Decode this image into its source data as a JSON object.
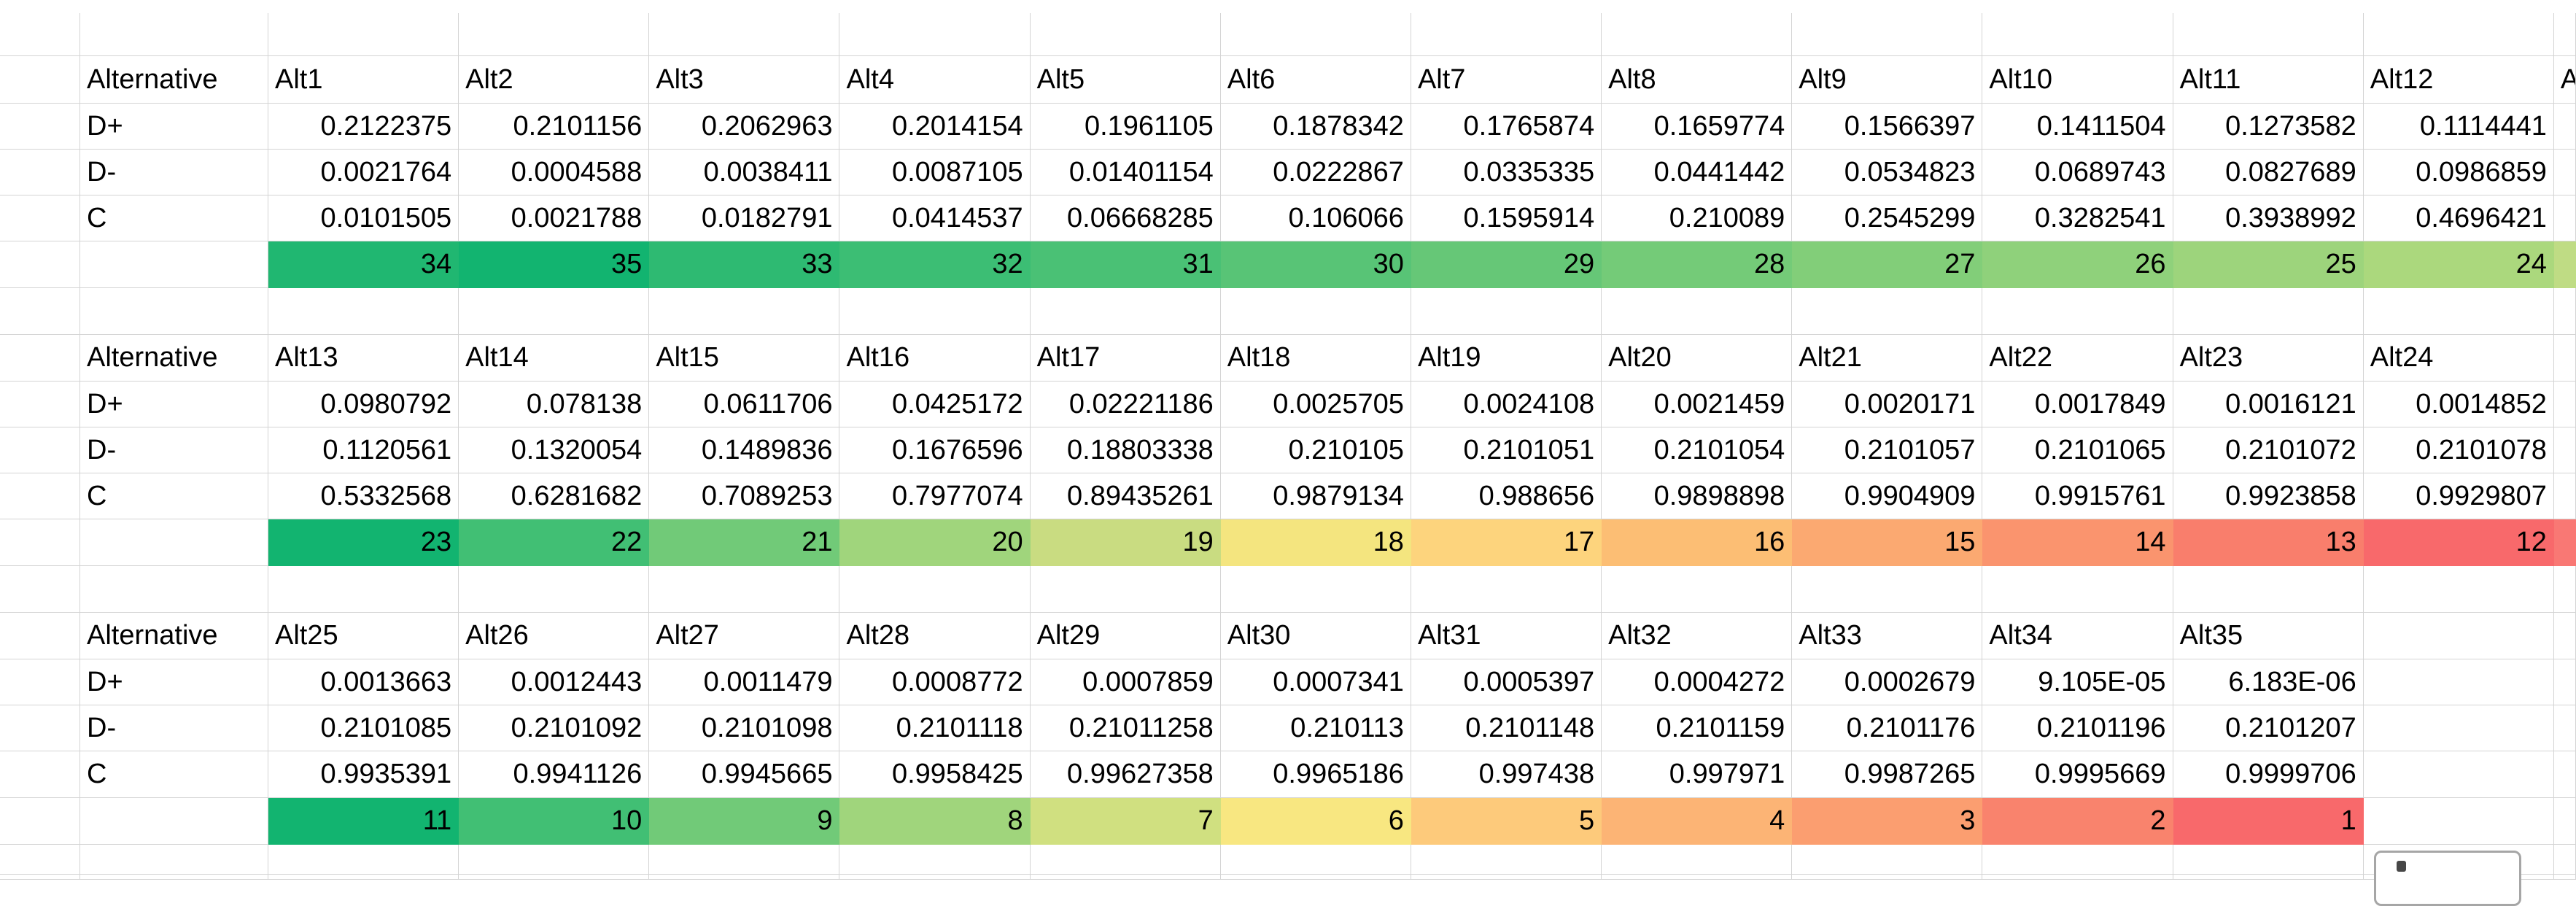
{
  "sheet": {
    "grid_color": "#d4d4d4",
    "header_label": "Alternative",
    "row_labels": [
      "D+",
      "D-",
      "C"
    ],
    "bands": [
      {
        "columns": [
          "Alt1",
          "Alt2",
          "Alt3",
          "Alt4",
          "Alt5",
          "Alt6",
          "Alt7",
          "Alt8",
          "Alt9",
          "Alt10",
          "Alt11",
          "Alt12"
        ],
        "sliver_header": "A",
        "rows": [
          [
            "0.2122375",
            "0.2101156",
            "0.2062963",
            "0.2014154",
            "0.1961105",
            "0.1878342",
            "0.1765874",
            "0.1659774",
            "0.1566397",
            "0.1411504",
            "0.1273582",
            "0.1114441"
          ],
          [
            "0.0021764",
            "0.0004588",
            "0.0038411",
            "0.0087105",
            "0.01401154",
            "0.0222867",
            "0.0335335",
            "0.0441442",
            "0.0534823",
            "0.0689743",
            "0.0827689",
            "0.0986859"
          ],
          [
            "0.0101505",
            "0.0021788",
            "0.0182791",
            "0.0414537",
            "0.06668285",
            "0.106066",
            "0.1595914",
            "0.210089",
            "0.2545299",
            "0.3282541",
            "0.3938992",
            "0.4696421"
          ]
        ],
        "ranks": [
          "34",
          "35",
          "33",
          "32",
          "31",
          "30",
          "29",
          "28",
          "27",
          "26",
          "25",
          "24"
        ],
        "rank_colors": [
          "#20B771",
          "#12B470",
          "#2EBA72",
          "#3CBE74",
          "#4AC175",
          "#58C476",
          "#66C777",
          "#74CB78",
          "#82CE79",
          "#8FD17B",
          "#9DD47C",
          "#ABD87D"
        ],
        "sliver_rank_color": "#BFDC84"
      },
      {
        "columns": [
          "Alt13",
          "Alt14",
          "Alt15",
          "Alt16",
          "Alt17",
          "Alt18",
          "Alt19",
          "Alt20",
          "Alt21",
          "Alt22",
          "Alt23",
          "Alt24"
        ],
        "sliver_header": "",
        "rows": [
          [
            "0.0980792",
            "0.078138",
            "0.0611706",
            "0.0425172",
            "0.02221186",
            "0.0025705",
            "0.0024108",
            "0.0021459",
            "0.0020171",
            "0.0017849",
            "0.0016121",
            "0.0014852"
          ],
          [
            "0.1120561",
            "0.1320054",
            "0.1489836",
            "0.1676596",
            "0.18803338",
            "0.210105",
            "0.2101051",
            "0.2101054",
            "0.2101057",
            "0.2101065",
            "0.2101072",
            "0.2101078"
          ],
          [
            "0.5332568",
            "0.6281682",
            "0.7089253",
            "0.7977074",
            "0.89435261",
            "0.9879134",
            "0.988656",
            "0.9898898",
            "0.9904909",
            "0.9915761",
            "0.9923858",
            "0.9929807"
          ]
        ],
        "ranks": [
          "23",
          "22",
          "21",
          "20",
          "19",
          "18",
          "17",
          "16",
          "15",
          "14",
          "13",
          "12"
        ],
        "rank_colors": [
          "#12B470",
          "#41BF74",
          "#71CA78",
          "#A0D57C",
          "#C9DC81",
          "#F4E57F",
          "#FDD47D",
          "#FCBE74",
          "#FBA971",
          "#FA946E",
          "#F97E6C",
          "#F8696B"
        ],
        "sliver_rank_color": "#F97874"
      },
      {
        "columns": [
          "Alt25",
          "Alt26",
          "Alt27",
          "Alt28",
          "Alt29",
          "Alt30",
          "Alt31",
          "Alt32",
          "Alt33",
          "Alt34",
          "Alt35",
          ""
        ],
        "sliver_header": "",
        "rows": [
          [
            "0.0013663",
            "0.0012443",
            "0.0011479",
            "0.0008772",
            "0.0007859",
            "0.0007341",
            "0.0005397",
            "0.0004272",
            "0.0002679",
            "9.105E-05",
            "6.183E-06",
            ""
          ],
          [
            "0.2101085",
            "0.2101092",
            "0.2101098",
            "0.2101118",
            "0.21011258",
            "0.210113",
            "0.2101148",
            "0.2101159",
            "0.2101176",
            "0.2101196",
            "0.2101207",
            ""
          ],
          [
            "0.9935391",
            "0.9941126",
            "0.9945665",
            "0.9958425",
            "0.99627358",
            "0.9965186",
            "0.997438",
            "0.997971",
            "0.9987265",
            "0.9995669",
            "0.9999706",
            ""
          ]
        ],
        "ranks": [
          "11",
          "10",
          "9",
          "8",
          "7",
          "6",
          "5",
          "4",
          "3",
          "2",
          "1",
          ""
        ],
        "rank_colors": [
          "#12B470",
          "#41BF74",
          "#71CA78",
          "#A0D57C",
          "#D0E080",
          "#F8E781",
          "#FDCA7B",
          "#FCB475",
          "#FB9E70",
          "#F9836D",
          "#F8696B",
          null
        ],
        "sliver_rank_color": null
      }
    ]
  },
  "corner_object": {
    "border_color": "#a6a6a6",
    "dot_color": "#474747"
  }
}
